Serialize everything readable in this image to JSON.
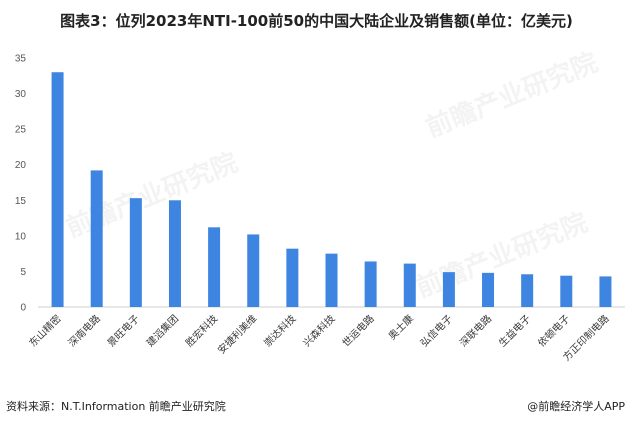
{
  "title": "图表3：位列2023年NTI-100前50的中国大陆企业及销售额(单位：亿美元)",
  "source": "资料来源：N.T.Information 前瞻产业研究院",
  "credit": "@前瞻经济学人APP",
  "watermarks": [
    "前瞻产业研究院",
    "前瞻产业研究院",
    "前瞻产业研究院"
  ],
  "colors": {
    "bar": "#3d85e0",
    "axis": "#d0d0d0"
  },
  "chart_data": {
    "type": "bar",
    "categories": [
      "东山精密",
      "深南电路",
      "景旺电子",
      "建滔集团",
      "胜宏科技",
      "安捷利美维",
      "崇达科技",
      "兴森科技",
      "世运电路",
      "奥士康",
      "弘信电子",
      "深联电路",
      "生益电子",
      "依顿电子",
      "方正印制电路"
    ],
    "values": [
      33.0,
      19.2,
      15.3,
      15.0,
      11.2,
      10.2,
      8.2,
      7.5,
      6.4,
      6.1,
      4.9,
      4.8,
      4.6,
      4.4,
      4.3
    ],
    "title": "图表3：位列2023年NTI-100前50的中国大陆企业及销售额(单位：亿美元)",
    "xlabel": "",
    "ylabel": "",
    "ylim": [
      0,
      35
    ],
    "yticks": [
      0,
      5,
      10,
      15,
      20,
      25,
      30,
      35
    ],
    "grid": false,
    "legend": "none"
  }
}
